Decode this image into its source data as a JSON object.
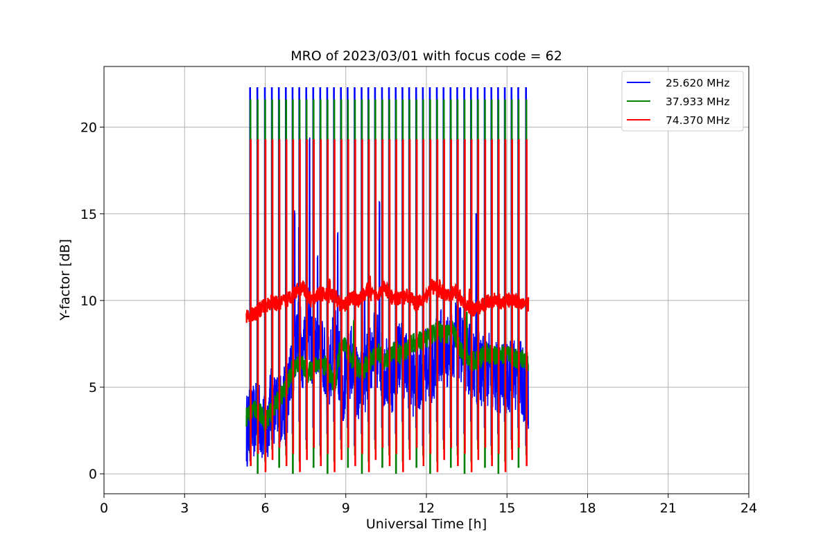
{
  "chart_data": {
    "type": "line",
    "title": "MRO of 2023/03/01 with focus code = 62",
    "xlabel": "Universal Time [h]",
    "ylabel": "Y-factor [dB]",
    "xlim": [
      0,
      24
    ],
    "ylim": [
      -1.15,
      23.5
    ],
    "xticks": [
      0,
      3,
      6,
      9,
      12,
      15,
      18,
      21,
      24
    ],
    "yticks": [
      0,
      5,
      10,
      15,
      20
    ],
    "grid": true,
    "legend_position": "top-right",
    "spike_times": [
      5.45,
      5.72,
      6.0,
      6.26,
      6.52,
      6.78,
      7.03,
      7.28,
      7.54,
      7.8,
      8.06,
      8.32,
      8.57,
      8.83,
      9.08,
      9.34,
      9.6,
      9.85,
      10.1,
      10.36,
      10.62,
      10.87,
      11.12,
      11.37,
      11.63,
      11.88,
      12.14,
      12.4,
      12.65,
      12.91,
      13.16,
      13.42,
      13.67,
      13.92,
      14.18,
      14.43,
      14.68,
      14.93,
      15.18,
      15.43,
      15.72
    ],
    "series": [
      {
        "name": "25.620 MHz",
        "color": "#0000ff",
        "spike_peak": 22.3,
        "spike_floor": 1.6,
        "baseline": [
          [
            5.3,
            2.5
          ],
          [
            5.5,
            2.9
          ],
          [
            5.8,
            3.2
          ],
          [
            6.0,
            2.2
          ],
          [
            6.2,
            4.0
          ],
          [
            6.5,
            3.6
          ],
          [
            6.8,
            4.2
          ],
          [
            7.0,
            6.0
          ],
          [
            7.2,
            8.5
          ],
          [
            7.4,
            7.0
          ],
          [
            7.6,
            9.0
          ],
          [
            7.8,
            6.5
          ],
          [
            8.0,
            8.0
          ],
          [
            8.3,
            5.5
          ],
          [
            8.6,
            7.5
          ],
          [
            8.9,
            5.0
          ],
          [
            9.2,
            6.5
          ],
          [
            9.5,
            4.8
          ],
          [
            9.8,
            6.0
          ],
          [
            10.1,
            7.5
          ],
          [
            10.4,
            6.0
          ],
          [
            10.7,
            5.5
          ],
          [
            11.0,
            7.0
          ],
          [
            11.3,
            6.0
          ],
          [
            11.6,
            5.2
          ],
          [
            11.9,
            6.5
          ],
          [
            12.2,
            6.0
          ],
          [
            12.5,
            7.5
          ],
          [
            12.8,
            7.0
          ],
          [
            13.1,
            8.0
          ],
          [
            13.4,
            7.0
          ],
          [
            13.7,
            6.5
          ],
          [
            14.0,
            6.0
          ],
          [
            14.3,
            6.0
          ],
          [
            14.6,
            5.5
          ],
          [
            14.9,
            5.5
          ],
          [
            15.2,
            5.8
          ],
          [
            15.5,
            5.5
          ],
          [
            15.8,
            4.7
          ]
        ],
        "bursts": [
          [
            7.1,
            15.2
          ],
          [
            7.25,
            14.3
          ],
          [
            7.55,
            17.4
          ],
          [
            7.65,
            19.5
          ],
          [
            7.95,
            12.7
          ],
          [
            8.7,
            14.0
          ],
          [
            9.7,
            10.5
          ],
          [
            10.25,
            15.8
          ],
          [
            11.05,
            8.0
          ],
          [
            13.85,
            15.1
          ],
          [
            15.45,
            7.7
          ]
        ]
      },
      {
        "name": "37.933 MHz",
        "color": "#008000",
        "spike_peak": 21.6,
        "spike_floor": 0.0,
        "baseline": [
          [
            5.3,
            3.3
          ],
          [
            5.6,
            3.8
          ],
          [
            5.8,
            3.5
          ],
          [
            6.0,
            3.0
          ],
          [
            6.3,
            3.8
          ],
          [
            6.6,
            4.5
          ],
          [
            6.8,
            5.0
          ],
          [
            7.0,
            6.0
          ],
          [
            7.3,
            6.5
          ],
          [
            7.6,
            5.8
          ],
          [
            8.0,
            6.4
          ],
          [
            8.3,
            6.2
          ],
          [
            8.6,
            5.0
          ],
          [
            8.8,
            7.5
          ],
          [
            9.0,
            7.2
          ],
          [
            9.3,
            6.5
          ],
          [
            9.6,
            5.8
          ],
          [
            9.9,
            6.6
          ],
          [
            10.2,
            7.0
          ],
          [
            10.5,
            6.5
          ],
          [
            10.8,
            7.2
          ],
          [
            11.1,
            6.8
          ],
          [
            11.4,
            7.5
          ],
          [
            11.7,
            7.6
          ],
          [
            12.0,
            7.8
          ],
          [
            12.4,
            8.3
          ],
          [
            12.7,
            8.0
          ],
          [
            13.0,
            8.3
          ],
          [
            13.3,
            7.0
          ],
          [
            13.6,
            6.5
          ],
          [
            13.9,
            6.5
          ],
          [
            14.2,
            7.0
          ],
          [
            14.5,
            6.8
          ],
          [
            14.8,
            6.9
          ],
          [
            15.1,
            6.8
          ],
          [
            15.4,
            6.6
          ],
          [
            15.8,
            6.6
          ]
        ],
        "bursts": [
          [
            9.3,
            8.9
          ],
          [
            11.7,
            7.5
          ],
          [
            13.5,
            9.4
          ]
        ]
      },
      {
        "name": "74.370 MHz",
        "color": "#ff0000",
        "spike_peak": 19.3,
        "spike_floor": 0.1,
        "baseline": [
          [
            5.3,
            9.1
          ],
          [
            5.6,
            9.2
          ],
          [
            5.9,
            9.6
          ],
          [
            6.2,
            9.9
          ],
          [
            6.5,
            9.8
          ],
          [
            6.8,
            10.0
          ],
          [
            7.1,
            10.5
          ],
          [
            7.4,
            10.8
          ],
          [
            7.7,
            10.0
          ],
          [
            8.0,
            10.4
          ],
          [
            8.3,
            10.3
          ],
          [
            8.6,
            10.2
          ],
          [
            8.9,
            9.6
          ],
          [
            9.2,
            10.2
          ],
          [
            9.5,
            10.0
          ],
          [
            9.8,
            10.6
          ],
          [
            10.1,
            10.2
          ],
          [
            10.4,
            10.8
          ],
          [
            10.7,
            10.2
          ],
          [
            11.0,
            10.1
          ],
          [
            11.3,
            10.3
          ],
          [
            11.6,
            9.8
          ],
          [
            11.9,
            10.0
          ],
          [
            12.2,
            10.8
          ],
          [
            12.5,
            10.6
          ],
          [
            12.8,
            10.2
          ],
          [
            13.1,
            10.5
          ],
          [
            13.4,
            9.9
          ],
          [
            13.7,
            9.5
          ],
          [
            14.0,
            9.6
          ],
          [
            14.3,
            10.0
          ],
          [
            14.6,
            10.0
          ],
          [
            14.9,
            9.9
          ],
          [
            15.2,
            10.1
          ],
          [
            15.5,
            9.9
          ],
          [
            15.8,
            9.8
          ]
        ],
        "bursts": [
          [
            8.4,
            11.3
          ],
          [
            9.9,
            11.5
          ],
          [
            12.5,
            11.3
          ],
          [
            13.6,
            10.7
          ]
        ]
      }
    ]
  }
}
